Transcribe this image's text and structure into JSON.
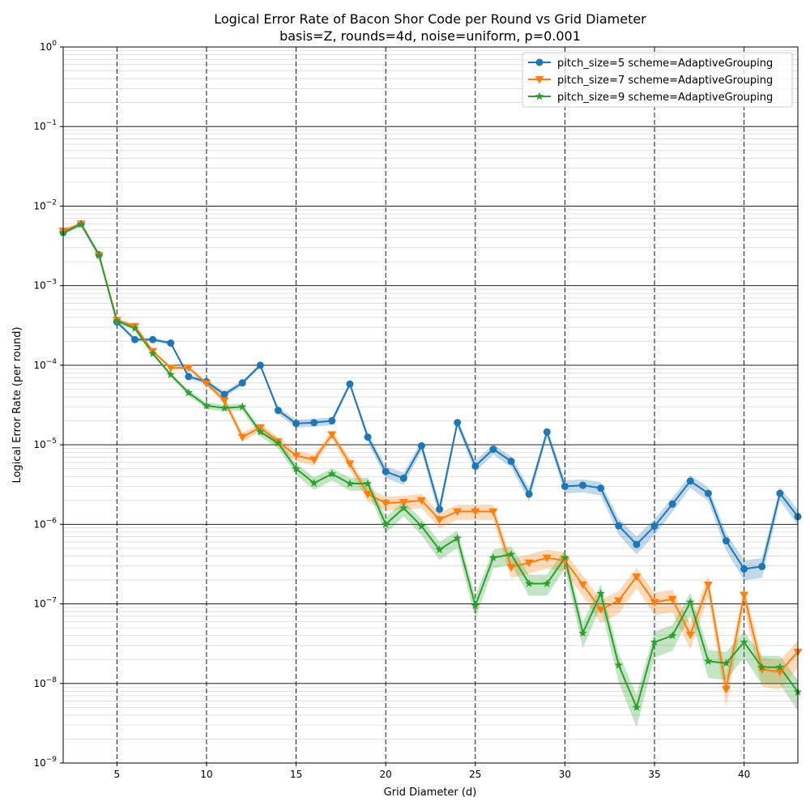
{
  "chart_data": {
    "type": "line",
    "title": "Logical Error Rate of Bacon Shor Code per Round vs Grid Diameter",
    "subtitle": "basis=Z, rounds=4d, noise=uniform, p=0.001",
    "xlabel": "Grid Diameter (d)",
    "ylabel": "Logical Error Rate (per round)",
    "xlim": [
      2,
      43
    ],
    "ylim_exp": [
      -9,
      0
    ],
    "yscale": "log",
    "xticks": [
      5,
      10,
      15,
      20,
      25,
      30,
      35,
      40
    ],
    "xtick_labels": [
      "5",
      "10",
      "15",
      "20",
      "25",
      "30",
      "35",
      "40"
    ],
    "ytick_bases": [
      "10",
      "10",
      "10",
      "10",
      "10",
      "10",
      "10",
      "10",
      "10",
      "10"
    ],
    "ytick_exps": [
      "−9",
      "−8",
      "−7",
      "−6",
      "−5",
      "−4",
      "−3",
      "−2",
      "−1",
      "0"
    ],
    "grid": true,
    "legend_position": "top-right",
    "series": [
      {
        "name": "pitch_size=5 scheme=AdaptiveGrouping",
        "color": "#1f77b4",
        "marker": "circle",
        "x": [
          2,
          3,
          4,
          5,
          6,
          7,
          8,
          9,
          10,
          11,
          12,
          13,
          14,
          15,
          16,
          17,
          18,
          19,
          20,
          21,
          22,
          23,
          24,
          25,
          26,
          27,
          28,
          29,
          30,
          31,
          32,
          33,
          34,
          35,
          36,
          37,
          38,
          39,
          40,
          41,
          42,
          43
        ],
        "y": [
          0.0047,
          0.006,
          0.00245,
          0.00035,
          0.00021,
          0.00021,
          0.00019,
          7.2e-05,
          6.2e-05,
          4.3e-05,
          6e-05,
          0.0001,
          2.7e-05,
          1.85e-05,
          1.9e-05,
          2e-05,
          5.8e-05,
          1.25e-05,
          4.6e-06,
          3.8e-06,
          9.7e-06,
          1.55e-06,
          1.9e-05,
          5.4e-06,
          8.8e-06,
          6.2e-06,
          2.4e-06,
          1.45e-05,
          3e-06,
          3.1e-06,
          2.85e-06,
          9.6e-07,
          5.6e-07,
          9.5e-07,
          1.8e-06,
          3.5e-06,
          2.45e-06,
          6.2e-07,
          2.75e-07,
          2.95e-07,
          2.45e-06,
          1.25e-06
        ]
      },
      {
        "name": "pitch_size=7 scheme=AdaptiveGrouping",
        "color": "#ff7f0e",
        "marker": "triangle-down",
        "x": [
          2,
          3,
          4,
          5,
          6,
          7,
          8,
          9,
          10,
          11,
          12,
          13,
          14,
          15,
          16,
          17,
          18,
          19,
          20,
          21,
          22,
          23,
          24,
          25,
          26,
          27,
          28,
          29,
          30,
          31,
          32,
          33,
          34,
          35,
          36,
          37,
          38,
          39,
          40,
          41,
          42,
          43
        ],
        "y": [
          0.0049,
          0.006,
          0.0024,
          0.00037,
          0.00031,
          0.00015,
          9.3e-05,
          9.3e-05,
          5.9e-05,
          3.6e-05,
          1.25e-05,
          1.65e-05,
          1.1e-05,
          7.3e-06,
          6.5e-06,
          1.35e-05,
          5.8e-06,
          2.4e-06,
          1.85e-06,
          1.9e-06,
          2e-06,
          1.15e-06,
          1.45e-06,
          1.45e-06,
          1.45e-06,
          2.9e-07,
          3.3e-07,
          3.8e-07,
          3.5e-07,
          1.75e-07,
          8.5e-08,
          1.1e-07,
          2.2e-07,
          1.05e-07,
          1.15e-07,
          4.1e-08,
          1.75e-07,
          8.5e-09,
          1.3e-07,
          1.5e-08,
          1.4e-08,
          2.5e-08
        ]
      },
      {
        "name": "pitch_size=9 scheme=AdaptiveGrouping",
        "color": "#2ca02c",
        "marker": "star",
        "x": [
          2,
          3,
          4,
          5,
          6,
          7,
          8,
          9,
          10,
          11,
          12,
          13,
          14,
          15,
          16,
          17,
          18,
          19,
          20,
          21,
          22,
          23,
          24,
          25,
          26,
          27,
          28,
          29,
          30,
          31,
          32,
          33,
          34,
          35,
          36,
          37,
          38,
          39,
          40,
          41,
          42,
          43
        ],
        "y": [
          0.0046,
          0.0059,
          0.0024,
          0.00036,
          0.00029,
          0.00014,
          7.6e-05,
          4.5e-05,
          3.1e-05,
          2.9e-05,
          3e-05,
          1.45e-05,
          1.05e-05,
          5e-06,
          3.3e-06,
          4.3e-06,
          3.25e-06,
          3.25e-06,
          1e-06,
          1.6e-06,
          9.5e-07,
          4.8e-07,
          6.7e-07,
          9.5e-08,
          3.8e-07,
          4.2e-07,
          1.8e-07,
          1.8e-07,
          3.8e-07,
          4.3e-08,
          1.35e-07,
          1.7e-08,
          5e-09,
          3.3e-08,
          4e-08,
          1.05e-07,
          1.9e-08,
          1.8e-08,
          3.3e-08,
          1.6e-08,
          1.6e-08,
          7.8e-09
        ]
      }
    ]
  }
}
